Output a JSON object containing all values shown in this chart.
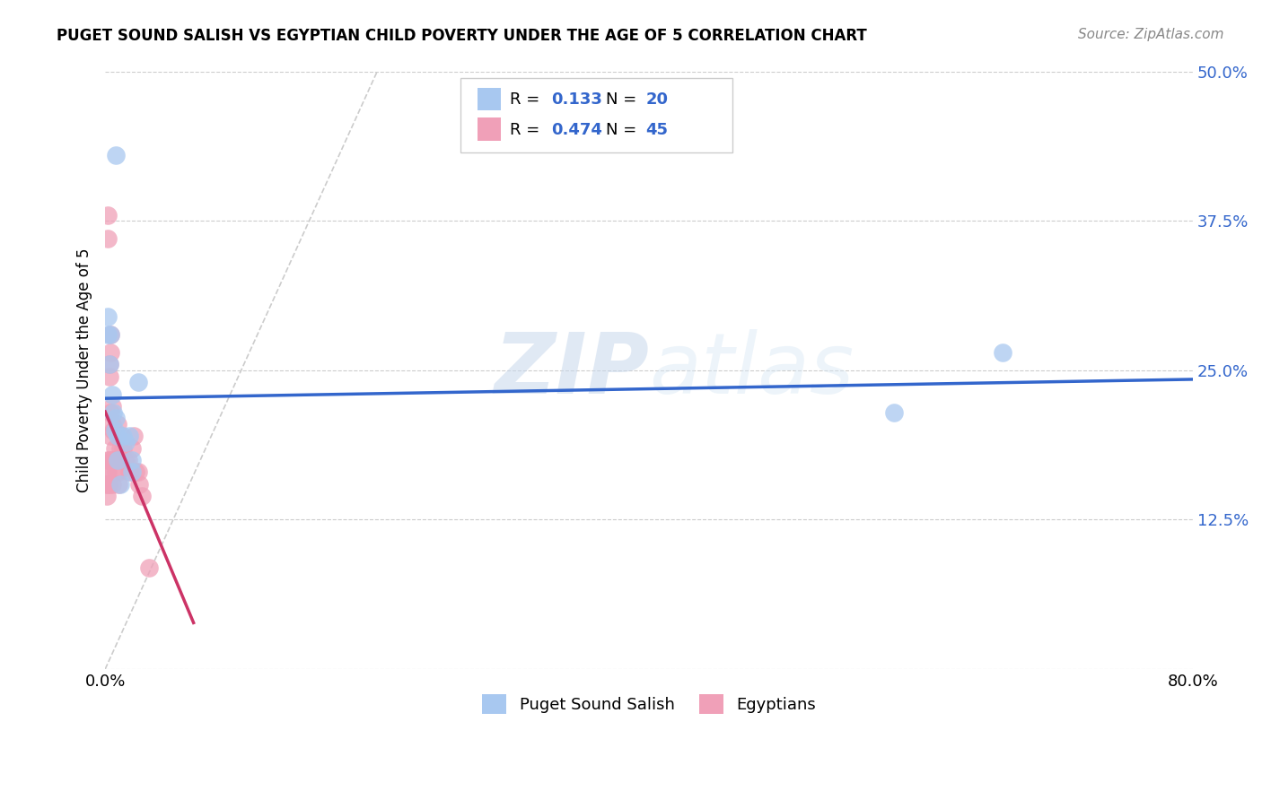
{
  "title": "PUGET SOUND SALISH VS EGYPTIAN CHILD POVERTY UNDER THE AGE OF 5 CORRELATION CHART",
  "source": "Source: ZipAtlas.com",
  "ylabel": "Child Poverty Under the Age of 5",
  "xlabel": "",
  "xlim": [
    0.0,
    0.8
  ],
  "ylim": [
    0.0,
    0.5
  ],
  "yticks": [
    0.0,
    0.125,
    0.25,
    0.375,
    0.5
  ],
  "ytick_labels": [
    "",
    "12.5%",
    "25.0%",
    "37.5%",
    "50.0%"
  ],
  "xticks": [
    0.0,
    0.2,
    0.4,
    0.6,
    0.8
  ],
  "xtick_labels": [
    "0.0%",
    "",
    "",
    "",
    "80.0%"
  ],
  "watermark_zip": "ZIP",
  "watermark_atlas": "atlas",
  "blue_color": "#a8c8f0",
  "pink_color": "#f0a0b8",
  "blue_line_color": "#3366cc",
  "pink_line_color": "#cc3366",
  "trendline_dash_color": "#cccccc",
  "background_color": "#ffffff",
  "puget_x": [
    0.008,
    0.002,
    0.002,
    0.003,
    0.004,
    0.005,
    0.006,
    0.007,
    0.008,
    0.009,
    0.009,
    0.011,
    0.013,
    0.015,
    0.018,
    0.02,
    0.02,
    0.024,
    0.58,
    0.66
  ],
  "puget_y": [
    0.43,
    0.295,
    0.28,
    0.255,
    0.28,
    0.23,
    0.215,
    0.2,
    0.21,
    0.195,
    0.175,
    0.155,
    0.195,
    0.19,
    0.195,
    0.175,
    0.165,
    0.24,
    0.215,
    0.265
  ],
  "egypt_x": [
    0.001,
    0.001,
    0.001,
    0.002,
    0.002,
    0.002,
    0.002,
    0.002,
    0.003,
    0.003,
    0.003,
    0.003,
    0.004,
    0.004,
    0.004,
    0.004,
    0.005,
    0.005,
    0.005,
    0.005,
    0.006,
    0.006,
    0.007,
    0.007,
    0.008,
    0.008,
    0.009,
    0.01,
    0.01,
    0.01,
    0.011,
    0.011,
    0.012,
    0.013,
    0.014,
    0.015,
    0.017,
    0.018,
    0.02,
    0.021,
    0.022,
    0.024,
    0.025,
    0.027,
    0.032
  ],
  "egypt_y": [
    0.165,
    0.155,
    0.145,
    0.38,
    0.36,
    0.175,
    0.165,
    0.155,
    0.255,
    0.245,
    0.175,
    0.155,
    0.28,
    0.265,
    0.215,
    0.195,
    0.22,
    0.205,
    0.175,
    0.155,
    0.2,
    0.175,
    0.185,
    0.175,
    0.175,
    0.165,
    0.205,
    0.175,
    0.165,
    0.155,
    0.185,
    0.175,
    0.195,
    0.185,
    0.175,
    0.175,
    0.175,
    0.165,
    0.185,
    0.195,
    0.165,
    0.165,
    0.155,
    0.145,
    0.085
  ]
}
